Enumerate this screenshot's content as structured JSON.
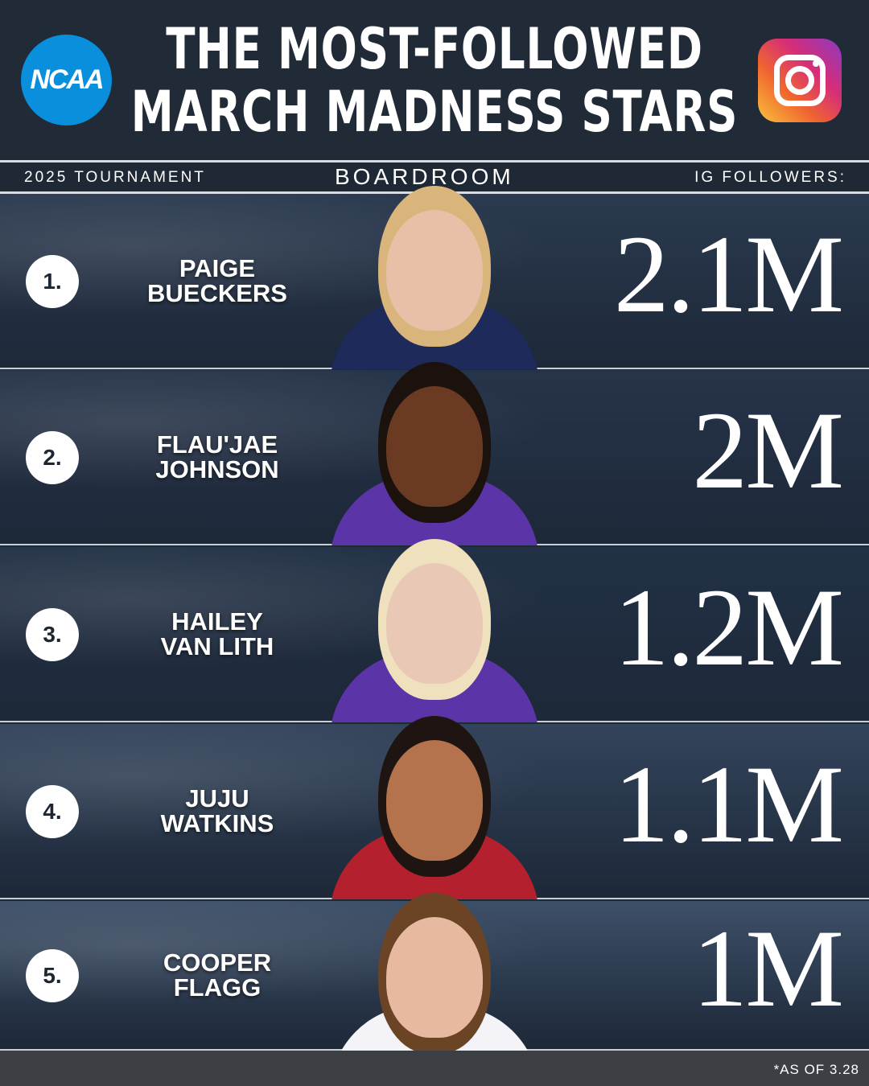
{
  "header": {
    "title_line1": "THE MOST-FOLLOWED",
    "title_line2": "MARCH MADNESS STARS",
    "logo_text": "NCAA",
    "instagram_icon": "instagram-icon"
  },
  "subheader": {
    "left": "2025 TOURNAMENT",
    "center": "BOARDROOM",
    "right": "IG FOLLOWERS:"
  },
  "players": [
    {
      "rank": "1.",
      "name1": "PAIGE",
      "name2": "BUECKERS",
      "followers": "2.1M",
      "bg": "#2b3a50",
      "skin": "#e8c0a8",
      "hair": "#d9b57c",
      "jersey": "#1d2a5a"
    },
    {
      "rank": "2.",
      "name1": "FLAU'JAE",
      "name2": "JOHNSON",
      "followers": "2M",
      "bg": "#26344a",
      "skin": "#6a3a22",
      "hair": "#1b120e",
      "jersey": "#5b34a8"
    },
    {
      "rank": "3.",
      "name1": "HAILEY",
      "name2": "VAN LITH",
      "followers": "1.2M",
      "bg": "#223146",
      "skin": "#eac8b6",
      "hair": "#efe1bd",
      "jersey": "#5b34a8"
    },
    {
      "rank": "4.",
      "name1": "JUJU",
      "name2": "WATKINS",
      "followers": "1.1M",
      "bg": "#33445c",
      "skin": "#b5734d",
      "hair": "#1e1512",
      "jersey": "#b5202e"
    },
    {
      "rank": "5.",
      "name1": "COOPER",
      "name2": "FLAGG",
      "followers": "1M",
      "bg": "#3d4f68",
      "skin": "#e6b9a0",
      "hair": "#6a4425",
      "jersey": "#f4f4f8"
    }
  ],
  "footnote": "*AS OF 3.28"
}
